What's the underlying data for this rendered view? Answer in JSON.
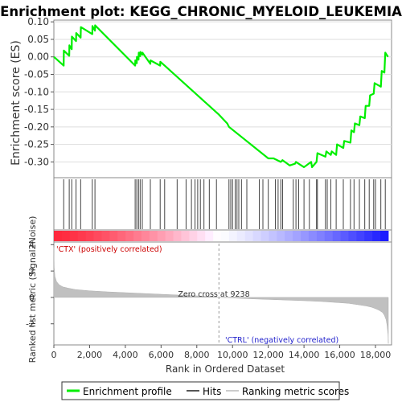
{
  "chart_data": [
    {
      "type": "line",
      "title": "Enrichment plot: KEGG_CHRONIC_MYELOID_LEUKEMIA",
      "ylabel": "Enrichment score (ES)",
      "ylim": [
        -0.345,
        0.105
      ],
      "yticks": [
        0.1,
        0.05,
        0.0,
        -0.05,
        -0.1,
        -0.15,
        -0.2,
        -0.25,
        -0.3
      ],
      "ytick_labels": [
        "0.10",
        "0.05",
        "0.00",
        "-0.05",
        "-0.10",
        "-0.15",
        "-0.20",
        "-0.25",
        "-0.30"
      ],
      "grid": true,
      "color": "#00ee00",
      "series": [
        {
          "name": "Enrichment profile",
          "x": [
            0,
            550,
            560,
            860,
            870,
            1000,
            1010,
            1240,
            1250,
            1500,
            1510,
            2150,
            2160,
            2300,
            2310,
            4550,
            4560,
            4640,
            4650,
            4740,
            4750,
            4830,
            4840,
            4950,
            4960,
            5400,
            5410,
            5950,
            5960,
            6200,
            9240,
            9700,
            9800,
            12000,
            12300,
            12700,
            12800,
            13200,
            13500,
            13550,
            14000,
            14400,
            14450,
            14700,
            14750,
            15200,
            15250,
            15500,
            15550,
            15800,
            15850,
            16200,
            16250,
            16600,
            16650,
            16800,
            16850,
            17100,
            17150,
            17400,
            17450,
            17650,
            17700,
            17900,
            17950,
            18300,
            18350,
            18500,
            18550,
            18700
          ],
          "y": [
            0.0,
            -0.025,
            0.018,
            0.003,
            0.033,
            0.022,
            0.058,
            0.045,
            0.068,
            0.055,
            0.085,
            0.065,
            0.088,
            0.075,
            0.09,
            -0.025,
            -0.01,
            -0.018,
            0.0,
            -0.008,
            0.012,
            0.002,
            0.014,
            0.006,
            0.012,
            -0.02,
            -0.01,
            -0.025,
            -0.014,
            -0.025,
            -0.165,
            -0.19,
            -0.2,
            -0.29,
            -0.29,
            -0.3,
            -0.295,
            -0.31,
            -0.305,
            -0.3,
            -0.315,
            -0.3,
            -0.315,
            -0.3,
            -0.275,
            -0.285,
            -0.27,
            -0.28,
            -0.27,
            -0.28,
            -0.25,
            -0.26,
            -0.24,
            -0.245,
            -0.21,
            -0.215,
            -0.19,
            -0.195,
            -0.17,
            -0.175,
            -0.14,
            -0.14,
            -0.11,
            -0.105,
            -0.075,
            -0.085,
            -0.04,
            -0.045,
            0.012,
            0.0
          ]
        }
      ]
    },
    {
      "type": "scatter",
      "series": [
        {
          "name": "Hits",
          "x": [
            550,
            860,
            1000,
            1240,
            1500,
            2150,
            2300,
            4550,
            4640,
            4740,
            4830,
            4950,
            5400,
            5950,
            6200,
            6900,
            7400,
            7700,
            7900,
            8050,
            8200,
            8400,
            8700,
            9100,
            9800,
            9900,
            10000,
            10150,
            10250,
            10350,
            10500,
            10800,
            11500,
            11700,
            12000,
            12400,
            12550,
            12700,
            12800,
            13400,
            13550,
            13700,
            14000,
            14300,
            14700,
            14750,
            15200,
            15300,
            15500,
            15800,
            16200,
            16600,
            16800,
            17100,
            17400,
            17650,
            17900,
            18000,
            18300,
            18550
          ]
        }
      ]
    },
    {
      "type": "area",
      "xlabel": "Rank in Ordered Dataset",
      "ylabel": "Ranked list metric (Signal2Noise)",
      "xlim": [
        0,
        18900
      ],
      "ylim": [
        -3.6,
        4.2
      ],
      "xticks": [
        0,
        2000,
        4000,
        6000,
        8000,
        10000,
        12000,
        14000,
        16000,
        18000
      ],
      "xtick_labels": [
        "0",
        "2,000",
        "4,000",
        "6,000",
        "8,000",
        "10,000",
        "12,000",
        "14,000",
        "16,000",
        "18,000"
      ],
      "yticks": [
        4,
        2,
        0,
        -2
      ],
      "ytick_labels": [
        "4",
        "2",
        "0",
        "-2"
      ],
      "series": [
        {
          "name": "Ranking metric scores",
          "x": [
            0,
            20,
            60,
            150,
            300,
            500,
            800,
            1200,
            2000,
            3000,
            4000,
            5000,
            6000,
            7000,
            8000,
            9000,
            9238,
            10000,
            11000,
            12000,
            13000,
            14000,
            15000,
            16000,
            16500,
            17000,
            17500,
            17800,
            18000,
            18200,
            18400,
            18500,
            18600,
            18650,
            18700,
            18720
          ],
          "y": [
            3.8,
            2.3,
            1.6,
            1.2,
            0.95,
            0.8,
            0.7,
            0.6,
            0.5,
            0.42,
            0.36,
            0.3,
            0.24,
            0.18,
            0.12,
            0.05,
            0.0,
            -0.04,
            -0.1,
            -0.15,
            -0.2,
            -0.25,
            -0.31,
            -0.4,
            -0.45,
            -0.55,
            -0.65,
            -0.75,
            -0.85,
            -0.97,
            -1.15,
            -1.35,
            -1.7,
            -2.1,
            -2.8,
            -3.5
          ]
        }
      ],
      "annotations": {
        "zero_cross": "Zero cross at 9238",
        "pos_label": "'CTX' (positively correlated)",
        "neg_label": "'CTRL' (negatively correlated)"
      }
    }
  ],
  "legend": {
    "items": [
      {
        "label": "Enrichment profile",
        "color": "#00ee00"
      },
      {
        "label": "Hits",
        "color": "#555555"
      },
      {
        "label": "Ranking metric scores",
        "color": "#cccccc"
      }
    ]
  }
}
